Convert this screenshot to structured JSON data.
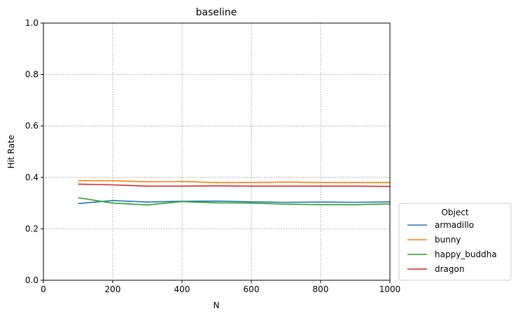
{
  "chart_data": {
    "type": "line",
    "title": "baseline",
    "xlabel": "N",
    "ylabel": "Hit Rate",
    "xlim": [
      0,
      1000
    ],
    "ylim": [
      0.0,
      1.0
    ],
    "x_ticks": [
      "0",
      "200",
      "400",
      "600",
      "800",
      "1000"
    ],
    "y_ticks": [
      "0.0",
      "0.2",
      "0.4",
      "0.6",
      "0.8",
      "1.0"
    ],
    "grid": true,
    "legend": {
      "title": "Object",
      "placement": "outside-bottom-right"
    },
    "x": [
      100,
      200,
      300,
      400,
      500,
      600,
      700,
      800,
      900,
      1000
    ],
    "series": [
      {
        "name": "armadillo",
        "color": "#1f77b4",
        "values": [
          0.298,
          0.31,
          0.304,
          0.307,
          0.308,
          0.305,
          0.303,
          0.304,
          0.303,
          0.305
        ]
      },
      {
        "name": "bunny",
        "color": "#ff7f0e",
        "values": [
          0.387,
          0.387,
          0.383,
          0.384,
          0.38,
          0.38,
          0.382,
          0.38,
          0.38,
          0.38
        ]
      },
      {
        "name": "happy_buddha",
        "color": "#2ca02c",
        "values": [
          0.321,
          0.3,
          0.293,
          0.306,
          0.301,
          0.3,
          0.296,
          0.294,
          0.294,
          0.297
        ]
      },
      {
        "name": "dragon",
        "color": "#d62728",
        "values": [
          0.374,
          0.371,
          0.366,
          0.366,
          0.367,
          0.366,
          0.366,
          0.366,
          0.366,
          0.365
        ]
      }
    ]
  }
}
